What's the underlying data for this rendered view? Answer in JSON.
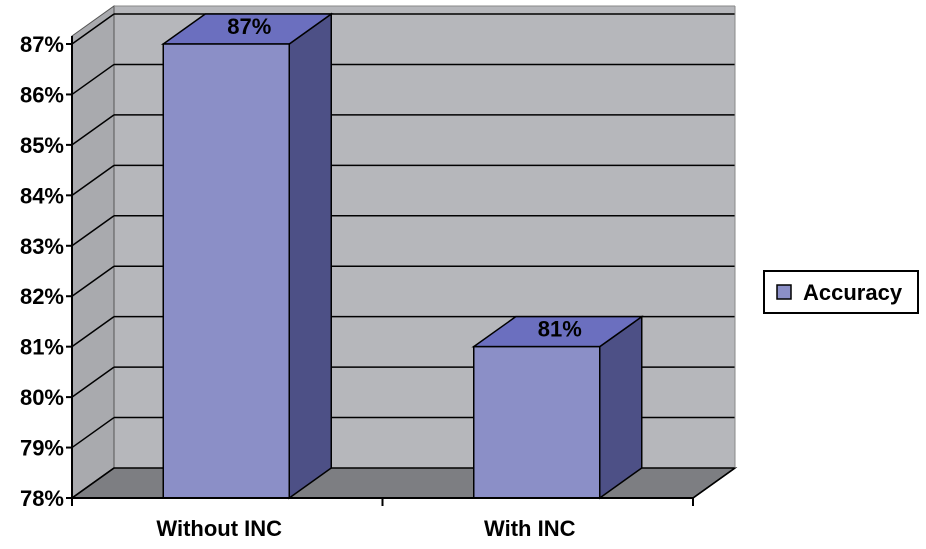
{
  "chart_data": {
    "type": "bar",
    "style": "3d-clustered-column",
    "categories": [
      "Without INC",
      "With INC"
    ],
    "series": [
      {
        "name": "Accuracy",
        "values": [
          87,
          81
        ]
      }
    ],
    "data_labels": [
      "87%",
      "81%"
    ],
    "ylim": [
      78,
      87
    ],
    "yticks": [
      "78%",
      "79%",
      "80%",
      "81%",
      "82%",
      "83%",
      "84%",
      "85%",
      "86%",
      "87%"
    ],
    "grid": true,
    "legend_position": "right",
    "colors": {
      "bar_front": "#8b8fc7",
      "bar_top": "#6b6fbf",
      "bar_side": "#4d5086",
      "wall": "#b6b7bb",
      "side_wall": "#a9aaae",
      "floor": "#7d7e82",
      "gridline": "#000000"
    }
  }
}
